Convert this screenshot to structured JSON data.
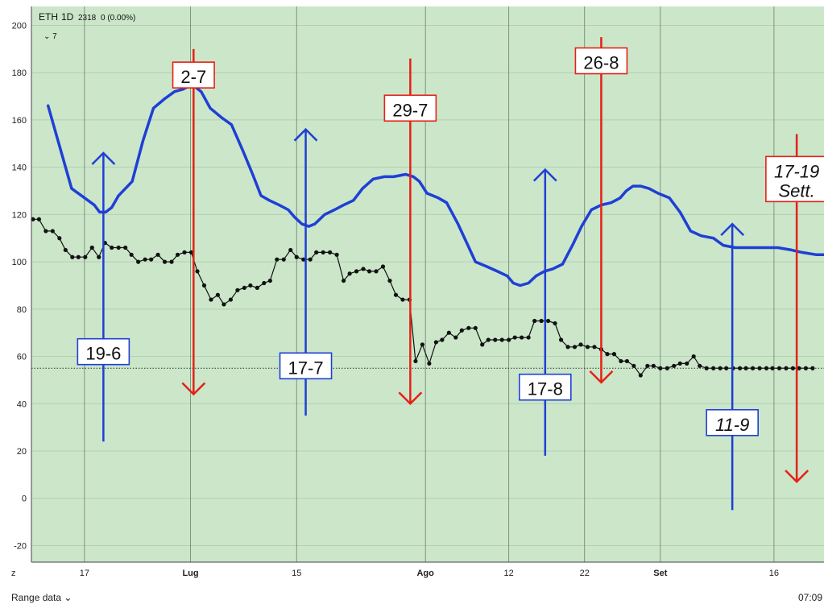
{
  "header": {
    "symbol": "ETH",
    "interval": "1D",
    "last_value": "2318",
    "change": "0 (0.00%)",
    "indicator_toggle": "⌄ 7"
  },
  "footer": {
    "range_label": "Range data ⌄",
    "time": "07:09"
  },
  "axis_corner": "z",
  "colors": {
    "background": "#cbe6c9",
    "blue": "#1f3fd6",
    "red": "#e62117",
    "black": "#111111"
  },
  "chart_data": {
    "type": "line",
    "x_unit": "days from 10 June",
    "ylim": [
      -27,
      208
    ],
    "grid": true,
    "y_ticks": [
      -20,
      0,
      20,
      40,
      60,
      80,
      100,
      120,
      140,
      160,
      180,
      200
    ],
    "x_ticks": [
      {
        "label": "17",
        "x": 7,
        "bold": false
      },
      {
        "label": "Lug",
        "x": 21,
        "bold": true
      },
      {
        "label": "15",
        "x": 35,
        "bold": false
      },
      {
        "label": "Ago",
        "x": 52,
        "bold": true
      },
      {
        "label": "12",
        "x": 63,
        "bold": false
      },
      {
        "label": "22",
        "x": 73,
        "bold": false
      },
      {
        "label": "Set",
        "x": 83,
        "bold": true
      },
      {
        "label": "16",
        "x": 98,
        "bold": false
      }
    ],
    "reference_line": 55,
    "series": [
      {
        "style": "blue-thick",
        "points": [
          [
            2.2,
            166
          ],
          [
            5.3,
            131
          ],
          [
            8.3,
            124
          ],
          [
            9.0,
            121
          ],
          [
            9.8,
            121
          ],
          [
            10.6,
            123
          ],
          [
            11.5,
            128
          ],
          [
            13.3,
            134
          ],
          [
            14.7,
            151
          ],
          [
            16.1,
            165
          ],
          [
            17.6,
            169
          ],
          [
            18.9,
            172
          ],
          [
            20.0,
            173
          ],
          [
            21.2,
            175
          ],
          [
            22.4,
            172
          ],
          [
            23.6,
            165
          ],
          [
            25.1,
            161
          ],
          [
            26.4,
            158
          ],
          [
            27.9,
            147
          ],
          [
            29.2,
            137
          ],
          [
            30.3,
            128
          ],
          [
            31.4,
            126
          ],
          [
            32.7,
            124
          ],
          [
            33.9,
            122
          ],
          [
            34.7,
            119
          ],
          [
            35.7,
            116
          ],
          [
            36.6,
            115
          ],
          [
            37.4,
            116
          ],
          [
            38.7,
            120
          ],
          [
            40.0,
            122
          ],
          [
            41.2,
            124
          ],
          [
            42.5,
            126
          ],
          [
            43.7,
            131
          ],
          [
            45.1,
            135
          ],
          [
            46.6,
            136
          ],
          [
            47.8,
            136
          ],
          [
            49.4,
            137
          ],
          [
            50.4,
            136
          ],
          [
            51.2,
            134
          ],
          [
            52.2,
            129
          ],
          [
            53.7,
            127
          ],
          [
            54.8,
            125
          ],
          [
            56.3,
            116
          ],
          [
            57.6,
            107
          ],
          [
            58.6,
            100
          ],
          [
            60.1,
            98
          ],
          [
            61.5,
            96
          ],
          [
            62.8,
            94
          ],
          [
            63.6,
            91
          ],
          [
            64.5,
            90
          ],
          [
            65.6,
            91
          ],
          [
            66.6,
            94
          ],
          [
            67.7,
            96
          ],
          [
            68.8,
            97
          ],
          [
            70.1,
            99
          ],
          [
            71.4,
            107
          ],
          [
            72.6,
            115
          ],
          [
            73.9,
            122
          ],
          [
            75.2,
            124
          ],
          [
            76.5,
            125
          ],
          [
            77.7,
            127
          ],
          [
            78.5,
            130
          ],
          [
            79.4,
            132
          ],
          [
            80.4,
            132
          ],
          [
            81.5,
            131
          ],
          [
            82.7,
            129
          ],
          [
            84.2,
            127
          ],
          [
            85.6,
            121
          ],
          [
            87.0,
            113
          ],
          [
            88.4,
            111
          ],
          [
            90.0,
            110
          ],
          [
            91.3,
            107
          ],
          [
            92.9,
            106
          ],
          [
            94.4,
            106
          ],
          [
            96.1,
            106
          ],
          [
            97.6,
            106
          ],
          [
            98.5,
            106
          ],
          [
            100.3,
            105
          ],
          [
            101.7,
            104
          ],
          [
            103.6,
            103
          ],
          [
            104.6,
            103
          ]
        ]
      },
      {
        "style": "black-dotted",
        "points": [
          [
            0.2,
            118
          ],
          [
            1.0,
            118
          ],
          [
            1.9,
            113
          ],
          [
            2.8,
            113
          ],
          [
            3.7,
            110
          ],
          [
            4.5,
            105
          ],
          [
            5.4,
            102
          ],
          [
            6.2,
            102
          ],
          [
            7.1,
            102
          ],
          [
            8.0,
            106
          ],
          [
            8.9,
            102
          ],
          [
            9.7,
            108
          ],
          [
            10.6,
            106
          ],
          [
            11.5,
            106
          ],
          [
            12.4,
            106
          ],
          [
            13.2,
            103
          ],
          [
            14.1,
            100
          ],
          [
            15.0,
            101
          ],
          [
            15.8,
            101
          ],
          [
            16.7,
            103
          ],
          [
            17.6,
            100
          ],
          [
            18.5,
            100
          ],
          [
            19.3,
            103
          ],
          [
            20.2,
            104
          ],
          [
            21.1,
            104
          ],
          [
            21.9,
            96
          ],
          [
            22.8,
            90
          ],
          [
            23.7,
            84
          ],
          [
            24.6,
            86
          ],
          [
            25.4,
            82
          ],
          [
            26.3,
            84
          ],
          [
            27.2,
            88
          ],
          [
            28.1,
            89
          ],
          [
            28.9,
            90
          ],
          [
            29.8,
            89
          ],
          [
            30.7,
            91
          ],
          [
            31.5,
            92
          ],
          [
            32.4,
            101
          ],
          [
            33.3,
            101
          ],
          [
            34.2,
            105
          ],
          [
            35.0,
            102
          ],
          [
            35.9,
            101
          ],
          [
            36.8,
            101
          ],
          [
            37.6,
            104
          ],
          [
            38.5,
            104
          ],
          [
            39.4,
            104
          ],
          [
            40.3,
            103
          ],
          [
            41.2,
            92
          ],
          [
            42.0,
            95
          ],
          [
            42.9,
            96
          ],
          [
            43.8,
            97
          ],
          [
            44.6,
            96
          ],
          [
            45.5,
            96
          ],
          [
            46.4,
            98
          ],
          [
            47.3,
            92
          ],
          [
            48.1,
            86
          ],
          [
            49.0,
            84
          ],
          [
            49.9,
            84
          ],
          [
            50.7,
            58
          ],
          [
            51.6,
            65
          ],
          [
            52.5,
            57
          ],
          [
            53.4,
            66
          ],
          [
            54.2,
            67
          ],
          [
            55.1,
            70
          ],
          [
            56.0,
            68
          ],
          [
            56.8,
            71
          ],
          [
            57.7,
            72
          ],
          [
            58.6,
            72
          ],
          [
            59.5,
            65
          ],
          [
            60.3,
            67
          ],
          [
            61.2,
            67
          ],
          [
            62.1,
            67
          ],
          [
            63.0,
            67
          ],
          [
            63.8,
            68
          ],
          [
            64.7,
            68
          ],
          [
            65.6,
            68
          ],
          [
            66.4,
            75
          ],
          [
            67.3,
            75
          ],
          [
            68.2,
            75
          ],
          [
            69.1,
            74
          ],
          [
            69.9,
            67
          ],
          [
            70.8,
            64
          ],
          [
            71.7,
            64
          ],
          [
            72.5,
            65
          ],
          [
            73.4,
            64
          ],
          [
            74.3,
            64
          ],
          [
            75.2,
            63
          ],
          [
            76.0,
            61
          ],
          [
            76.9,
            61
          ],
          [
            77.8,
            58
          ],
          [
            78.6,
            58
          ],
          [
            79.5,
            56
          ],
          [
            80.4,
            52
          ],
          [
            81.3,
            56
          ],
          [
            82.1,
            56
          ],
          [
            83.0,
            55
          ],
          [
            83.9,
            55
          ],
          [
            84.8,
            56
          ],
          [
            85.6,
            57
          ],
          [
            86.5,
            57
          ],
          [
            87.4,
            60
          ],
          [
            88.2,
            56
          ],
          [
            89.1,
            55
          ],
          [
            90.0,
            55
          ],
          [
            90.9,
            55
          ],
          [
            91.7,
            55
          ],
          [
            92.6,
            55
          ],
          [
            93.5,
            55
          ],
          [
            94.3,
            55
          ],
          [
            95.2,
            55
          ],
          [
            96.1,
            55
          ],
          [
            97.0,
            55
          ],
          [
            97.8,
            55
          ],
          [
            98.7,
            55
          ],
          [
            99.6,
            55
          ],
          [
            100.5,
            55
          ],
          [
            101.3,
            55
          ],
          [
            102.2,
            55
          ],
          [
            103.1,
            55
          ]
        ]
      }
    ],
    "annotations": [
      {
        "label": "19-6",
        "direction": "up",
        "color": "blue",
        "x": 9.5,
        "y_tail": 24,
        "y_head": 146,
        "box_y": 62,
        "style": "normal"
      },
      {
        "label": "2-7",
        "direction": "down",
        "color": "red",
        "x": 21.4,
        "y_tail": 190,
        "y_head": 44,
        "box_y": 179,
        "style": "normal"
      },
      {
        "label": "17-7",
        "direction": "up",
        "color": "blue",
        "x": 36.2,
        "y_tail": 35,
        "y_head": 156,
        "box_y": 56,
        "style": "normal"
      },
      {
        "label": "29-7",
        "direction": "down",
        "color": "red",
        "x": 50.0,
        "y_tail": 186,
        "y_head": 40,
        "box_y": 165,
        "style": "normal"
      },
      {
        "label": "17-8",
        "direction": "up",
        "color": "blue",
        "x": 67.8,
        "y_tail": 18,
        "y_head": 139,
        "box_y": 47,
        "style": "normal"
      },
      {
        "label": "26-8",
        "direction": "down",
        "color": "red",
        "x": 75.2,
        "y_tail": 195,
        "y_head": 49,
        "box_y": 185,
        "style": "normal"
      },
      {
        "label": "11-9",
        "direction": "up",
        "color": "blue",
        "x": 92.5,
        "y_tail": -5,
        "y_head": 116,
        "box_y": 32,
        "style": "italic"
      },
      {
        "label": "17-19",
        "label2": "Sett.",
        "direction": "down",
        "color": "red",
        "x": 101.0,
        "y_tail": 154,
        "y_head": 7,
        "box_y": 135,
        "style": "italic"
      }
    ]
  }
}
